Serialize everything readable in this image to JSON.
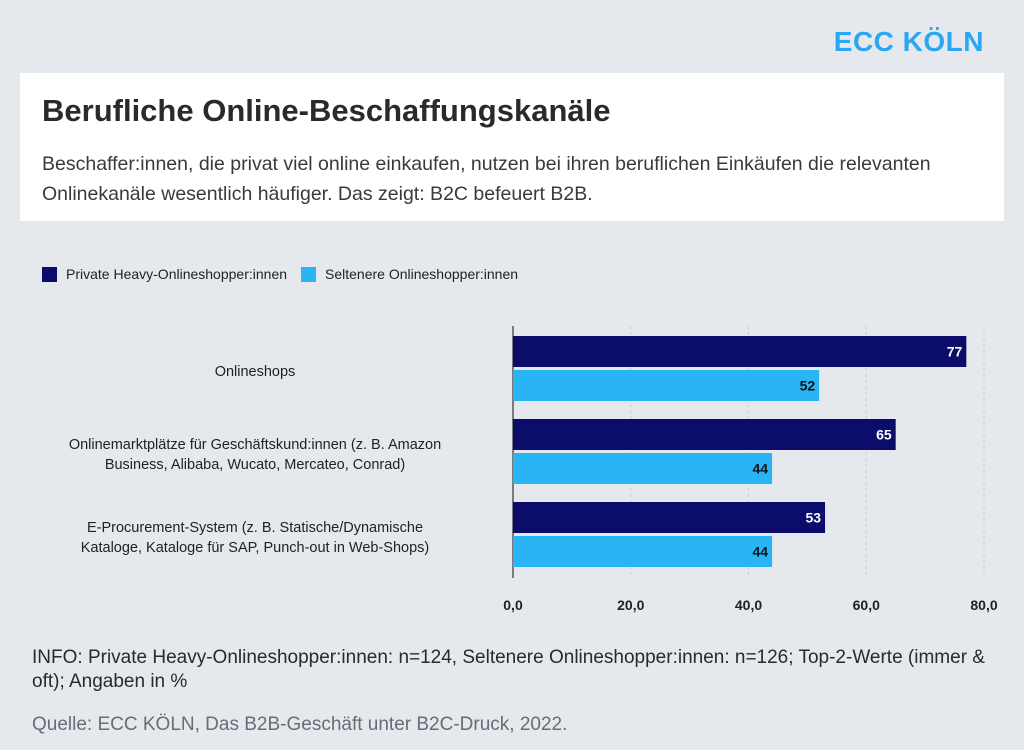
{
  "brand": "ECC KÖLN",
  "header": {
    "title": "Berufliche Online-Beschaffungskanäle",
    "subtitle": "Beschaffer:innen, die privat viel online einkaufen, nutzen bei ihren beruflichen Einkäufen die relevanten Onlinekanäle wesentlich häufiger. Das zeigt: B2C befeuert B2B."
  },
  "colors": {
    "series_dark": "#0c0c6b",
    "series_light": "#28b4f5",
    "brand": "#2aa7f2",
    "background": "#e5e8ec"
  },
  "chart_data": {
    "type": "bar",
    "orientation": "horizontal",
    "categories": [
      "Onlineshops",
      "Onlinemarktplätze für Geschäftskund:innen (z. B. Amazon Business, Alibaba, Wucato, Mercateo, Conrad)",
      "E-Procurement-System (z. B. Statische/Dynamische Kataloge, Kataloge für SAP, Punch-out in Web-Shops)"
    ],
    "category_lines": [
      [
        "Onlineshops"
      ],
      [
        "Onlinemarktplätze für Geschäftskund:innen (z. B. Amazon",
        "Business, Alibaba, Wucato, Mercateo, Conrad)"
      ],
      [
        "E-Procurement-System (z. B. Statische/Dynamische",
        "Kataloge, Kataloge für SAP, Punch-out in Web-Shops)"
      ]
    ],
    "series": [
      {
        "name": "Private Heavy-Onlineshopper:innen",
        "values": [
          77,
          65,
          53
        ],
        "labels": [
          "77",
          "65",
          "53"
        ]
      },
      {
        "name": "Seltenere Onlineshopper:innen",
        "values": [
          52,
          44,
          44
        ],
        "labels": [
          "52",
          "44",
          "44"
        ]
      }
    ],
    "x_ticks": [
      "0,0",
      "20,0",
      "40,0",
      "60,0",
      "80,0"
    ],
    "x_tick_values": [
      0,
      20,
      40,
      60,
      80
    ],
    "xlim": [
      0,
      80
    ],
    "grid": true,
    "legend_position": "top-left"
  },
  "footer": {
    "info": "INFO: Private Heavy-Onlineshopper:innen: n=124, Seltenere Onlineshopper:innen: n=126; Top-2-Werte (immer & oft); Angaben in %",
    "source": "Quelle: ECC KÖLN, Das B2B-Geschäft unter B2C-Druck, 2022."
  }
}
